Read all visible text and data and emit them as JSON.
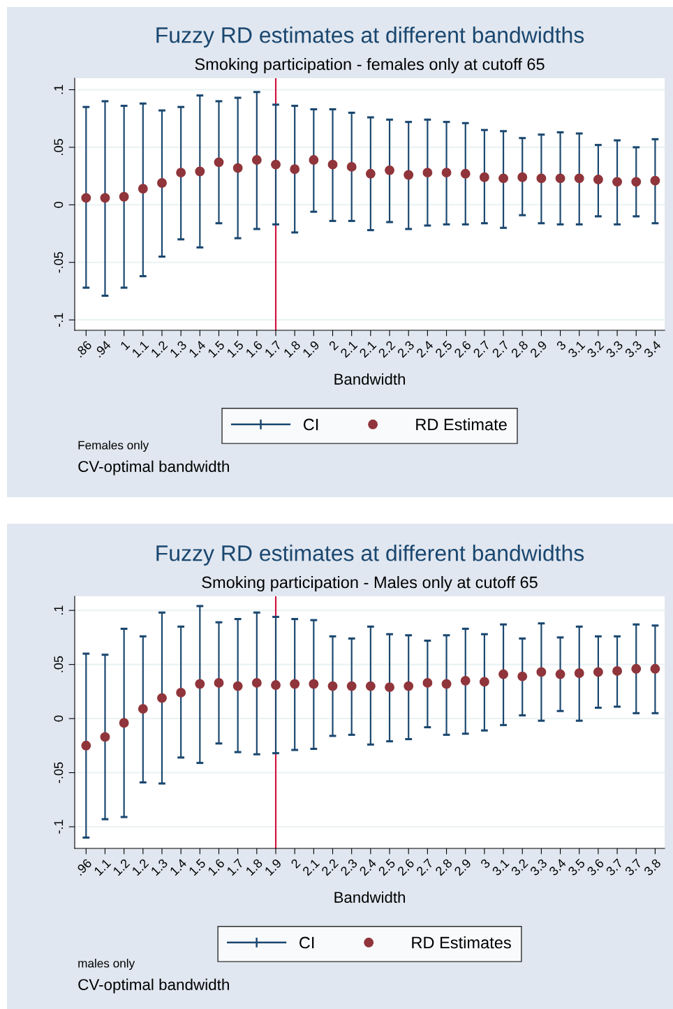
{
  "chart_data": [
    {
      "type": "scatter",
      "title": "Fuzzy RD estimates at different bandwidths",
      "subtitle": "Smoking participation - females only at cutoff 65",
      "xlabel": "Bandwidth",
      "annotations": [
        "Females only",
        "CV-optimal bandwidth"
      ],
      "categories": [
        ".86",
        ".94",
        "1",
        "1.1",
        "1.2",
        "1.3",
        "1.4",
        "1.5",
        "1.5",
        "1.6",
        "1.7",
        "1.8",
        "1.9",
        "2",
        "2.1",
        "2.1",
        "2.2",
        "2.3",
        "2.4",
        "2.5",
        "2.6",
        "2.7",
        "2.7",
        "2.8",
        "2.9",
        "3",
        "3.1",
        "3.2",
        "3.3",
        "3.3",
        "3.4"
      ],
      "series": [
        {
          "name": "CI",
          "type": "bar",
          "color": "#1a476f",
          "base": [
            -0.072,
            -0.079,
            -0.072,
            -0.062,
            -0.045,
            -0.03,
            -0.037,
            -0.016,
            -0.029,
            -0.021,
            -0.017,
            -0.024,
            -0.006,
            -0.014,
            -0.014,
            -0.022,
            -0.015,
            -0.021,
            -0.018,
            -0.017,
            -0.017,
            -0.016,
            -0.02,
            -0.009,
            -0.016,
            -0.017,
            -0.017,
            -0.01,
            -0.017,
            -0.01,
            -0.016
          ],
          "values": [
            0.157,
            0.169,
            0.158,
            0.15,
            0.127,
            0.115,
            0.132,
            0.106,
            0.122,
            0.119,
            0.104,
            0.11,
            0.089,
            0.097,
            0.094,
            0.098,
            0.089,
            0.093,
            0.092,
            0.089,
            0.088,
            0.081,
            0.084,
            0.067,
            0.077,
            0.08,
            0.079,
            0.062,
            0.073,
            0.06,
            0.073
          ]
        },
        {
          "name": "RD Estimate",
          "color": "#90353b",
          "values": [
            0.006,
            0.006,
            0.007,
            0.014,
            0.019,
            0.028,
            0.029,
            0.037,
            0.032,
            0.039,
            0.035,
            0.031,
            0.039,
            0.035,
            0.033,
            0.027,
            0.03,
            0.026,
            0.028,
            0.028,
            0.027,
            0.024,
            0.023,
            0.024,
            0.023,
            0.023,
            0.023,
            0.022,
            0.02,
            0.02,
            0.021
          ]
        }
      ],
      "ylim": [
        -0.109,
        0.11
      ],
      "yticks": [
        {
          "value": -0.1,
          "label": "-.1"
        },
        {
          "value": -0.05,
          "label": "-.05"
        },
        0,
        {
          "value": 0.05,
          "label": ".05"
        },
        {
          "value": 0.1,
          "label": ".1"
        }
      ],
      "ref_lines": [
        {
          "axis": "x",
          "value": "1.7",
          "color": "#d0103a"
        }
      ],
      "grid": "y",
      "legend": "bottom",
      "marker": "circle"
    },
    {
      "type": "scatter",
      "title": "Fuzzy RD estimates at different bandwidths",
      "subtitle": "Smoking participation - Males only at cutoff 65",
      "xlabel": "Bandwidth",
      "annotations": [
        "males only",
        "CV-optimal bandwidth"
      ],
      "categories": [
        ".96",
        "1.1",
        "1.2",
        "1.2",
        "1.3",
        "1.4",
        "1.5",
        "1.6",
        "1.7",
        "1.8",
        "1.9",
        "2",
        "2.1",
        "2.2",
        "2.3",
        "2.4",
        "2.5",
        "2.6",
        "2.7",
        "2.8",
        "2.9",
        "3",
        "3.1",
        "3.2",
        "3.3",
        "3.4",
        "3.5",
        "3.6",
        "3.7",
        "3.7",
        "3.8"
      ],
      "series": [
        {
          "name": "CI",
          "type": "bar",
          "color": "#1a476f",
          "base": [
            -0.11,
            -0.093,
            -0.091,
            -0.059,
            -0.06,
            -0.036,
            -0.041,
            -0.023,
            -0.031,
            -0.033,
            -0.032,
            -0.029,
            -0.028,
            -0.016,
            -0.015,
            -0.024,
            -0.021,
            -0.019,
            -0.008,
            -0.015,
            -0.014,
            -0.011,
            -0.006,
            0.003,
            -0.002,
            0.007,
            -0.002,
            0.01,
            0.011,
            0.005,
            0.005
          ],
          "values": [
            0.17,
            0.152,
            0.174,
            0.135,
            0.158,
            0.121,
            0.145,
            0.112,
            0.123,
            0.131,
            0.126,
            0.121,
            0.119,
            0.092,
            0.089,
            0.109,
            0.099,
            0.096,
            0.08,
            0.092,
            0.097,
            0.089,
            0.093,
            0.071,
            0.09,
            0.068,
            0.087,
            0.066,
            0.065,
            0.082,
            0.081
          ]
        },
        {
          "name": "RD Estimates",
          "color": "#90353b",
          "values": [
            -0.025,
            -0.017,
            -0.004,
            0.009,
            0.019,
            0.024,
            0.032,
            0.033,
            0.03,
            0.033,
            0.031,
            0.032,
            0.032,
            0.03,
            0.03,
            0.03,
            0.029,
            0.03,
            0.033,
            0.032,
            0.035,
            0.034,
            0.041,
            0.039,
            0.043,
            0.041,
            0.042,
            0.043,
            0.044,
            0.046,
            0.046
          ]
        }
      ],
      "ylim": [
        -0.12,
        0.113
      ],
      "yticks": [
        {
          "value": -0.1,
          "label": "-.1"
        },
        {
          "value": -0.05,
          "label": "-.05"
        },
        0,
        {
          "value": 0.05,
          "label": ".05"
        },
        {
          "value": 0.1,
          "label": ".1"
        }
      ],
      "ref_lines": [
        {
          "axis": "x",
          "value": "1.9",
          "color": "#d0103a"
        }
      ],
      "grid": "y",
      "legend": "bottom",
      "marker": "circle"
    }
  ]
}
